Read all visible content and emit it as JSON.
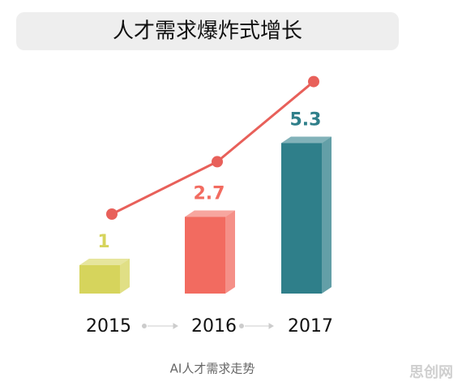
{
  "chart_data": {
    "type": "bar",
    "title": "人才需求爆炸式增长",
    "caption": "AI人才需求走势",
    "watermark": "思创网",
    "categories": [
      "2015",
      "2016",
      "2017"
    ],
    "values": [
      1,
      2.7,
      5.3
    ],
    "colors": [
      "#d6d45c",
      "#f26b60",
      "#2f7f8a"
    ],
    "line_color": "#e8605a",
    "show_line": true
  }
}
